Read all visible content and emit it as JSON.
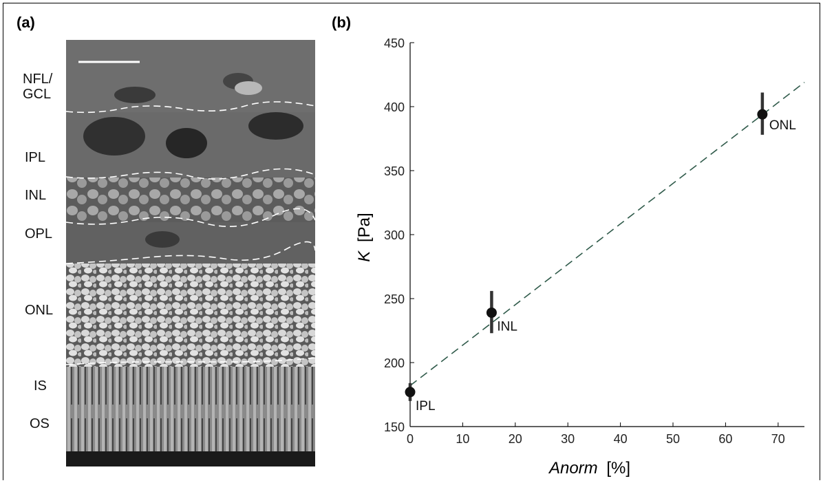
{
  "panel_a": {
    "label": "(a)",
    "layers": [
      {
        "id": "nfl",
        "text": "NFL/\nGCL"
      },
      {
        "id": "ipl",
        "text": "IPL"
      },
      {
        "id": "inl",
        "text": "INL"
      },
      {
        "id": "opl",
        "text": "OPL"
      },
      {
        "id": "onl",
        "text": "ONL"
      },
      {
        "id": "is",
        "text": "IS"
      },
      {
        "id": "os",
        "text": "OS"
      }
    ]
  },
  "panel_b": {
    "label": "(b)"
  },
  "chart_data": {
    "type": "scatter",
    "xlabel_italic": "Anorm",
    "xlabel_unit": "[%]",
    "ylabel_italic": "K",
    "ylabel_unit": "[Pa]",
    "xlim": [
      0,
      75
    ],
    "ylim": [
      150,
      450
    ],
    "xticks": [
      0,
      10,
      20,
      30,
      40,
      50,
      60,
      70
    ],
    "yticks": [
      150,
      200,
      250,
      300,
      350,
      400,
      450
    ],
    "points": [
      {
        "label": "IPL",
        "x": 0,
        "y": 177,
        "err_low": 170,
        "err_high": 184
      },
      {
        "label": "INL",
        "x": 15.5,
        "y": 239,
        "err_low": 223,
        "err_high": 256
      },
      {
        "label": "ONL",
        "x": 67,
        "y": 394,
        "err_low": 378,
        "err_high": 411
      }
    ],
    "fit_line": {
      "style": "dashed",
      "color": "#2f5a4a",
      "x": [
        0,
        75
      ],
      "y": [
        182,
        419
      ]
    }
  }
}
